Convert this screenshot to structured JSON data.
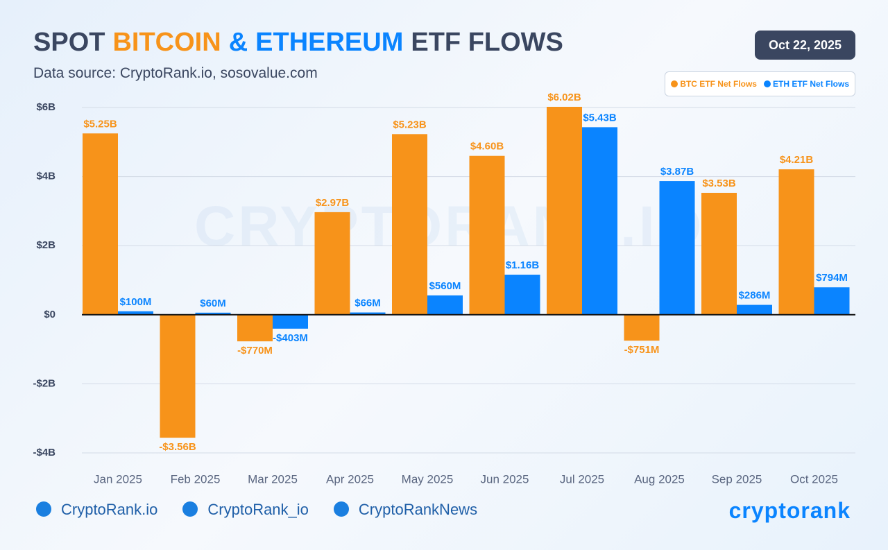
{
  "chart_data": {
    "type": "bar",
    "title": [
      {
        "text": "SPOT",
        "color": "#3a4660"
      },
      {
        "text": "BITCOIN",
        "color": "#f7931a"
      },
      {
        "text": "&",
        "color": "#0a84ff"
      },
      {
        "text": "ETHEREUM",
        "color": "#0a84ff"
      },
      {
        "text": "ETF FLOWS",
        "color": "#3a4660"
      }
    ],
    "subtitle": "Data source: CryptoRank.io, sosovalue.com",
    "categories": [
      "Jan 2025",
      "Feb 2025",
      "Mar 2025",
      "Apr 2025",
      "May 2025",
      "Jun 2025",
      "Jul 2025",
      "Aug 2025",
      "Sep 2025",
      "Oct 2025"
    ],
    "series": [
      {
        "name": "BTC ETF Net Flows",
        "color": "#f7931a",
        "values": [
          5.25,
          -3.56,
          -0.77,
          2.97,
          5.23,
          4.6,
          6.02,
          -0.751,
          3.53,
          4.21
        ],
        "value_labels": [
          "$5.25B",
          "-$3.56B",
          "-$770M",
          "$2.97B",
          "$5.23B",
          "$4.60B",
          "$6.02B",
          "-$751M",
          "$3.53B",
          "$4.21B"
        ]
      },
      {
        "name": "ETH ETF Net Flows",
        "color": "#0a84ff",
        "values": [
          0.1,
          0.06,
          -0.403,
          0.066,
          0.56,
          1.16,
          5.43,
          3.87,
          0.286,
          0.794
        ],
        "value_labels": [
          "$100M",
          "$60M",
          "-$403M",
          "$66M",
          "$560M",
          "$1.16B",
          "$5.43B",
          "$3.87B",
          "$286M",
          "$794M"
        ]
      }
    ],
    "ylim": [
      -4,
      6
    ],
    "yticks": [
      {
        "value": -4,
        "label": "-$4B"
      },
      {
        "value": -2,
        "label": "-$2B"
      },
      {
        "value": 0,
        "label": "$0"
      },
      {
        "value": 2,
        "label": "$2B"
      },
      {
        "value": 4,
        "label": "$4B"
      },
      {
        "value": 6,
        "label": "$6B"
      }
    ],
    "grid": true,
    "legend": "top-right"
  },
  "header": {
    "date": "Oct 22, 2025"
  },
  "watermark": "CRYPTORANK.IO",
  "footer": {
    "links": [
      "CryptoRank.io",
      "CryptoRank_io",
      "CryptoRankNews"
    ],
    "logo": "cryptorank"
  }
}
